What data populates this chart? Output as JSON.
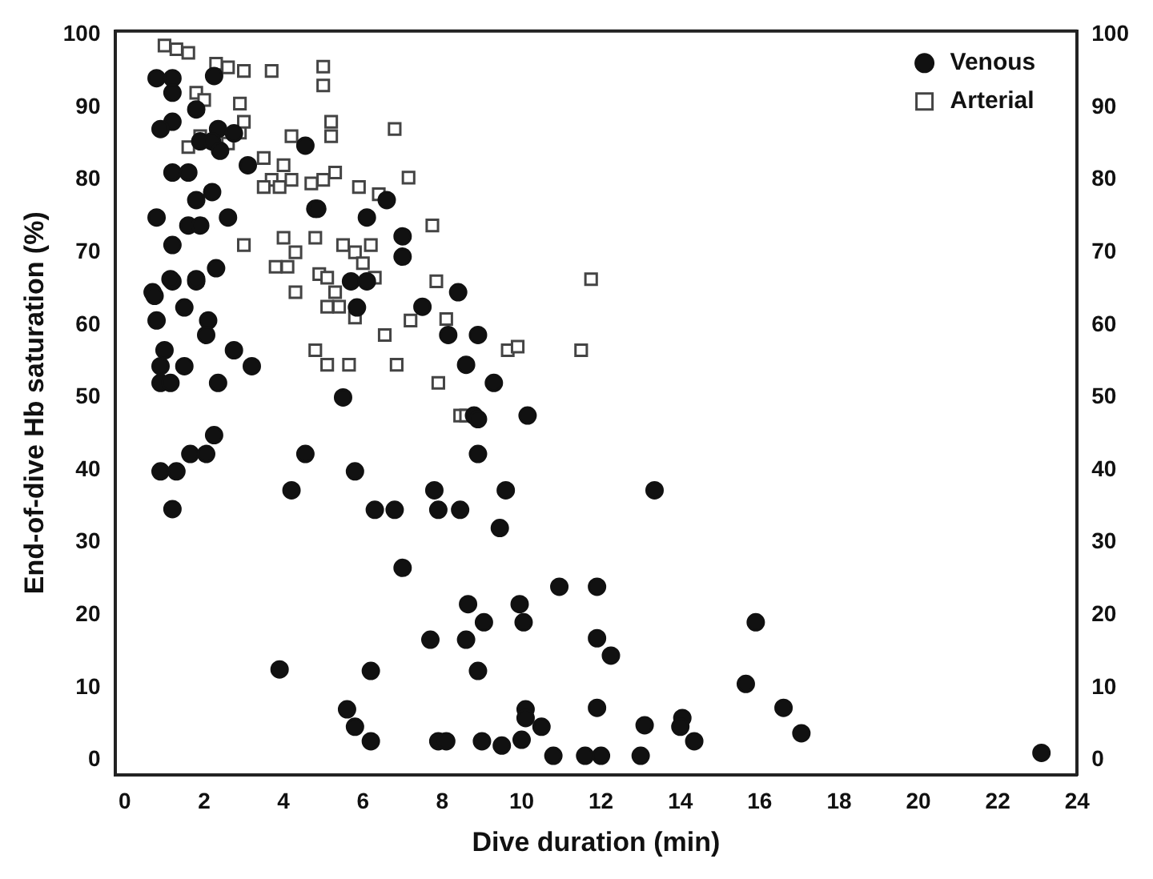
{
  "chart_data": {
    "type": "scatter",
    "xlabel": "Dive duration (min)",
    "ylabel": "End-of-dive Hb saturation (%)",
    "xlim": [
      -0.25,
      24
    ],
    "xticks": [
      0,
      2,
      4,
      6,
      8,
      10,
      12,
      14,
      16,
      18,
      20,
      22,
      24
    ],
    "ylim": [
      -2,
      100.5
    ],
    "yticks": [
      0,
      10,
      20,
      30,
      40,
      50,
      60,
      70,
      80,
      90,
      100
    ],
    "y2lim": [
      -2,
      100.5
    ],
    "y2ticks": [
      0,
      10,
      20,
      30,
      40,
      50,
      60,
      70,
      80,
      90,
      100
    ],
    "grid": false,
    "legend": "top right",
    "series": [
      {
        "name": "Venous",
        "color": "#111111",
        "marker": "circle",
        "x": [
          0.8,
          1.2,
          2.25,
          1.2,
          1.8,
          1.2,
          0.9,
          2.35,
          2.75,
          4.55,
          1.9,
          2.2,
          2.4,
          3.1,
          1.2,
          1.6,
          2.2,
          1.8,
          4.8,
          0.8,
          2.6,
          1.6,
          1.9,
          1.2,
          2.3,
          1.2,
          1.8,
          0.7,
          1.15,
          1.8,
          0.75,
          1.5,
          0.8,
          2.1,
          2.05,
          1.0,
          2.75,
          0.9,
          1.5,
          3.2,
          0.9,
          1.15,
          2.35,
          2.25,
          1.65,
          2.05,
          0.9,
          1.3,
          4.2,
          4.55,
          1.2,
          3.9,
          4.85,
          6.6,
          6.1,
          7.0,
          7.0,
          5.7,
          6.1,
          5.85,
          8.4,
          7.5,
          8.15,
          8.9,
          8.6,
          9.3,
          5.5,
          8.8,
          10.15,
          8.9,
          6.3,
          6.8,
          7.9,
          8.45,
          7.8,
          9.6,
          5.8,
          8.9,
          9.45,
          7.0,
          10.95,
          8.65,
          9.95,
          9.05,
          10.05,
          7.7,
          8.6,
          6.2,
          8.9,
          5.6,
          10.1,
          10.1,
          5.8,
          10.5,
          6.2,
          7.9,
          8.1,
          9.0,
          9.5,
          10.0,
          10.8,
          13.35,
          11.9,
          15.9,
          11.9,
          12.25,
          15.65,
          11.9,
          16.6,
          14.05,
          14.0,
          13.1,
          17.05,
          14.35,
          11.6,
          12.0,
          13.0,
          23.1
        ],
        "values": [
          94,
          94,
          94.3,
          92,
          89.7,
          88,
          87,
          87,
          86.4,
          84.7,
          85.3,
          85.3,
          84,
          82,
          81,
          81,
          78.3,
          77.2,
          76,
          74.8,
          74.8,
          73.7,
          73.7,
          71,
          67.8,
          66,
          66,
          64.5,
          66.3,
          66.3,
          64,
          62.4,
          60.6,
          60.6,
          58.6,
          56.5,
          56.5,
          54.3,
          54.3,
          54.3,
          52,
          52,
          52,
          44.8,
          42.2,
          42.2,
          39.8,
          39.8,
          37.2,
          42.2,
          34.6,
          12.5,
          76,
          77.2,
          74.8,
          72.2,
          69.4,
          66,
          66,
          62.4,
          64.5,
          62.5,
          58.6,
          58.6,
          54.5,
          52,
          50,
          47.5,
          47.5,
          42.2,
          34.5,
          34.5,
          34.5,
          34.5,
          37.2,
          37.2,
          39.8,
          47,
          32,
          26.5,
          23.9,
          21.5,
          21.5,
          19,
          19,
          16.6,
          16.6,
          12.3,
          12.3,
          7,
          7,
          5.8,
          4.6,
          4.6,
          2.6,
          2.6,
          2.6,
          2.6,
          2,
          2.8,
          0.6,
          37.2,
          23.9,
          19,
          16.8,
          14.4,
          10.5,
          7.2,
          7.2,
          5.8,
          4.6,
          4.8,
          3.7,
          2.6,
          0.6,
          0.6,
          0.6,
          1
        ]
      },
      {
        "name": "Arterial",
        "color": "#444444",
        "marker": "square",
        "x": [
          1.0,
          1.3,
          1.6,
          1.8,
          2.3,
          2.6,
          3.0,
          3.7,
          2.0,
          1.6,
          1.9,
          2.6,
          2.9,
          3.0,
          2.9,
          3.0,
          3.5,
          3.7,
          3.9,
          4.0,
          4.2,
          3.5,
          4.2,
          4.0,
          4.3,
          3.8,
          4.1,
          4.3,
          5.0,
          5.0,
          5.2,
          5.2,
          5.3,
          5.0,
          4.7,
          4.8,
          4.9,
          5.1,
          5.3,
          5.1,
          5.4,
          5.1,
          5.65,
          4.8,
          5.5,
          5.8,
          6.0,
          6.2,
          5.8,
          5.9,
          6.4,
          6.8,
          6.3,
          6.55,
          6.85,
          7.2,
          7.15,
          7.75,
          7.85,
          7.9,
          8.1,
          9.65,
          8.45,
          8.6,
          9.9,
          11.5,
          11.75
        ],
        "values": [
          98.5,
          98,
          97.5,
          92,
          96,
          95.5,
          95,
          95,
          91,
          84.5,
          86,
          85,
          86.5,
          88,
          90.5,
          71,
          83,
          80,
          79,
          82,
          80,
          79,
          86,
          72,
          70,
          68,
          68,
          64.5,
          95.6,
          93,
          88,
          86,
          81,
          80,
          79.5,
          72,
          67,
          66.5,
          64.5,
          62.5,
          62.5,
          54.5,
          54.5,
          56.5,
          71,
          70,
          68.5,
          71,
          61,
          79,
          78,
          87,
          66.5,
          58.6,
          54.5,
          60.6,
          80.3,
          73.7,
          66,
          52,
          60.8,
          56.5,
          47.5,
          47.5,
          57,
          56.5,
          66.3
        ]
      }
    ]
  }
}
